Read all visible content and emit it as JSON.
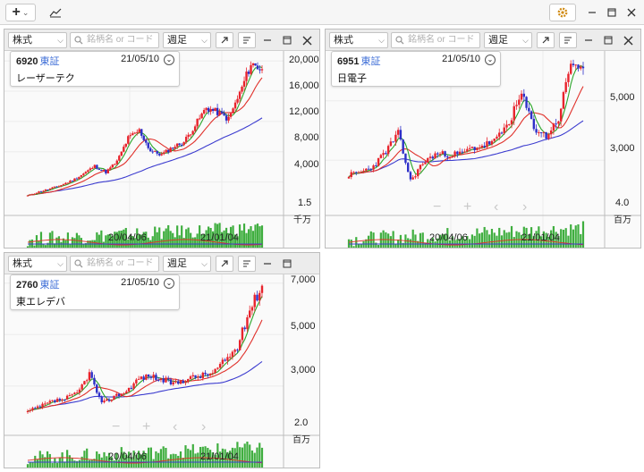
{
  "toolbar": {
    "add_label": "+",
    "add_dropdown_arrow": "⌄",
    "chart_icon": "line-chart-icon",
    "settings_icon": "gear-icon"
  },
  "ui": {
    "type_select": "株式",
    "search_placeholder": "銘柄名 or コード",
    "period_select": "週足"
  },
  "colors": {
    "up": "#e8232c",
    "down": "#2d2fc8",
    "ma_short": "#2aa52a",
    "ma_mid": "#e0302a",
    "ma_long": "#3c3ccf",
    "volume": "#3fae3f"
  },
  "panels": [
    {
      "code": "6920",
      "exchange": "東証",
      "date": "21/05/10",
      "name": "レーザーテク",
      "y_ticks": [
        "20,000",
        "16,000",
        "12,000",
        "8,000",
        "4,000"
      ],
      "y_tick_values": [
        20000,
        16000,
        12000,
        8000,
        4000
      ],
      "y_range": [
        1000,
        20600
      ],
      "x_ticks": [
        "20/04/06",
        "21/01/04"
      ],
      "volume_tick": "1.5",
      "volume_unit": "千万"
    },
    {
      "code": "6951",
      "exchange": "東証",
      "date": "21/05/10",
      "name": "日電子",
      "y_ticks": [
        "5,000",
        "3,000"
      ],
      "y_tick_values": [
        5000,
        3000
      ],
      "y_range": [
        1500,
        6500
      ],
      "x_ticks": [
        "20/04/06",
        "21/01/04"
      ],
      "volume_tick": "4.0",
      "volume_unit": "百万"
    },
    {
      "code": "2760",
      "exchange": "東証",
      "date": "21/05/10",
      "name": "東エレデバ",
      "y_ticks": [
        "7,000",
        "5,000",
        "3,000"
      ],
      "y_tick_values": [
        7000,
        5000,
        3000
      ],
      "y_range": [
        1500,
        7200
      ],
      "x_ticks": [
        "20/04/06",
        "21/01/04"
      ],
      "volume_tick": "2.0",
      "volume_unit": "百万"
    }
  ],
  "chart_data": [
    {
      "type": "candlestick",
      "title": "6920 レーザーテク",
      "x_ticks": [
        "20/04/06",
        "21/01/04"
      ],
      "anchor_closes": [
        2200,
        2700,
        3100,
        3600,
        4200,
        5100,
        6100,
        5300,
        6700,
        9800,
        10800,
        8100,
        7600,
        8600,
        9300,
        11500,
        13800,
        13200,
        12300,
        15700,
        19600,
        18900
      ],
      "ylim": [
        1000,
        20600
      ]
    },
    {
      "type": "candlestick",
      "title": "6951 日電子",
      "x_ticks": [
        "20/04/06",
        "21/01/04"
      ],
      "anchor_closes": [
        2500,
        2600,
        2800,
        3300,
        3900,
        2300,
        2900,
        3200,
        3200,
        3200,
        3400,
        3500,
        3700,
        4300,
        5200,
        4100,
        3800,
        4400,
        6300,
        6100
      ],
      "ylim": [
        1500,
        6500
      ]
    },
    {
      "type": "candlestick",
      "title": "2760 東エレデバ",
      "x_ticks": [
        "20/04/06",
        "21/01/04"
      ],
      "anchor_closes": [
        2000,
        2200,
        2400,
        2500,
        2700,
        3500,
        2300,
        2600,
        2800,
        3300,
        3400,
        3200,
        3100,
        3300,
        3400,
        3500,
        4000,
        4500,
        6000,
        6900
      ],
      "ylim": [
        1500,
        7200
      ]
    }
  ]
}
